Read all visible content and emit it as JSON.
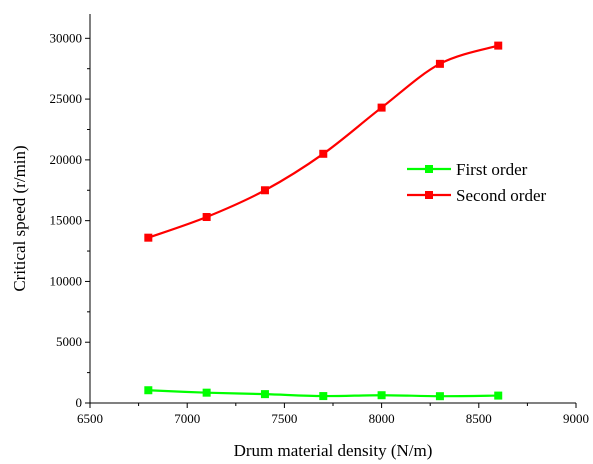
{
  "chart_data": {
    "type": "line",
    "xlabel": "Drum material density (N/m)",
    "ylabel": "Critical speed (r/min)",
    "xlim": [
      6500,
      9000
    ],
    "ylim": [
      0,
      32000
    ],
    "xticks": [
      6500,
      7000,
      7500,
      8000,
      8500,
      9000
    ],
    "yticks": [
      0,
      5000,
      10000,
      15000,
      20000,
      25000,
      30000
    ],
    "x_minor_step": 250,
    "y_minor_step": 2500,
    "grid": false,
    "legend_position": "right-middle",
    "series": [
      {
        "name": "First order",
        "color": "#00ff00",
        "marker": "square",
        "x": [
          6800,
          7100,
          7400,
          7700,
          8000,
          8300,
          8600
        ],
        "y": [
          1050,
          850,
          730,
          570,
          640,
          560,
          610
        ]
      },
      {
        "name": "Second order",
        "color": "#ff0000",
        "marker": "square",
        "x": [
          6800,
          7100,
          7400,
          7700,
          8000,
          8300,
          8600
        ],
        "y": [
          13600,
          15300,
          17500,
          20500,
          24300,
          27900,
          29400
        ]
      }
    ]
  }
}
